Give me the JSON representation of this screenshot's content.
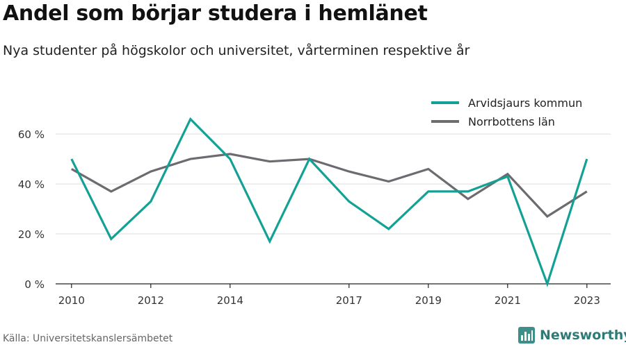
{
  "header": {
    "title": "Andel som börjar studera i hemlänet",
    "subtitle": "Nya studenter på högskolor och universitet, vårterminen respektive år"
  },
  "footer": {
    "source": "Källa: Universitetskanslersämbetet",
    "brand": "Newsworthy",
    "brand_icon": "bar-chart-icon"
  },
  "chart_data": {
    "type": "line",
    "title": "Andel som börjar studera i hemlänet",
    "subtitle": "Nya studenter på högskolor och universitet, vårterminen respektive år",
    "xlabel": "",
    "ylabel": "",
    "x": [
      2010,
      2011,
      2012,
      2013,
      2014,
      2015,
      2016,
      2017,
      2018,
      2019,
      2020,
      2021,
      2022,
      2023
    ],
    "xticks": [
      "2010",
      "2012",
      "2014",
      "2017",
      "2019",
      "2021",
      "2023"
    ],
    "xlim": [
      2009.6,
      2023.6
    ],
    "ylim": [
      0,
      72
    ],
    "yticks": [
      0,
      20,
      40,
      60
    ],
    "ytick_labels": [
      "0 %",
      "20 %",
      "40 %",
      "60 %"
    ],
    "grid": true,
    "legend_position": "top-right",
    "series": [
      {
        "name": "Arvidsjaurs kommun",
        "color": "#12a194",
        "values": [
          50,
          18,
          33,
          66,
          50,
          17,
          50,
          33,
          22,
          37,
          37,
          43,
          0,
          50
        ]
      },
      {
        "name": "Norrbottens län",
        "color": "#6d6a70",
        "values": [
          46,
          37,
          45,
          50,
          52,
          49,
          50,
          45,
          41,
          46,
          34,
          44,
          27,
          37
        ]
      }
    ]
  }
}
